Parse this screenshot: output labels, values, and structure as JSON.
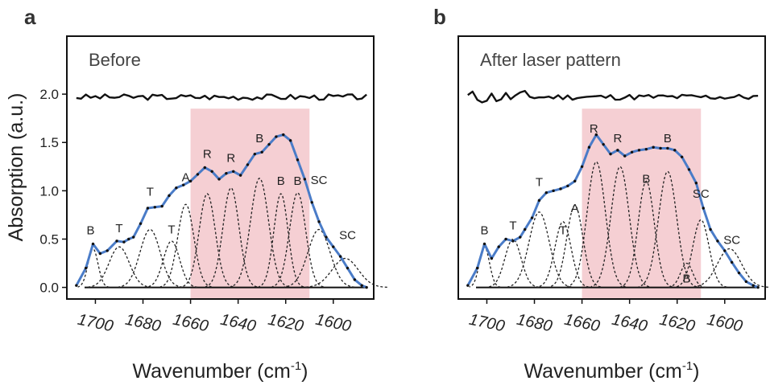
{
  "ylabel": "Absorption (a.u.)",
  "xlabel": "Wavenumber (cm",
  "xlabel_sup": "-1",
  "xlabel_close": ")",
  "panels": [
    {
      "letter": "a",
      "title": "Before"
    },
    {
      "letter": "b",
      "title": "After laser pattern"
    }
  ],
  "colors": {
    "fit_line": "#4a7cc8",
    "shade": "#f5cfd3",
    "residual": "#111111",
    "components": "#222222",
    "data_points": "#111111"
  },
  "chart_data": [
    {
      "type": "line",
      "title": "Before",
      "xlabel": "Wavenumber (cm-1)",
      "ylabel": "Absorption (a.u.)",
      "xlim": [
        1712,
        1583
      ],
      "ylim": [
        -0.12,
        2.6
      ],
      "x_reversed": true,
      "x_ticks": [
        1700,
        1680,
        1660,
        1640,
        1620,
        1600
      ],
      "y_ticks": [
        "0.0",
        "0.5",
        "1.0",
        "1.5",
        "2.0"
      ],
      "shaded_region": [
        1660,
        1610
      ],
      "residual_offset": 1.97,
      "series": [
        {
          "kind": "fitted_spectrum",
          "x": [
            1708,
            1704,
            1701,
            1698,
            1695,
            1691,
            1688,
            1686,
            1684,
            1681,
            1678,
            1675,
            1672,
            1669,
            1666,
            1663,
            1660,
            1657,
            1654,
            1651,
            1648,
            1645,
            1642,
            1639,
            1636,
            1633,
            1630,
            1627,
            1624,
            1621,
            1618,
            1615,
            1612,
            1609,
            1606,
            1603,
            1600,
            1597,
            1594,
            1591,
            1588,
            1586
          ],
          "y": [
            0.02,
            0.2,
            0.45,
            0.35,
            0.38,
            0.48,
            0.47,
            0.5,
            0.52,
            0.66,
            0.82,
            0.83,
            0.84,
            0.95,
            1.03,
            1.06,
            1.1,
            1.17,
            1.24,
            1.2,
            1.12,
            1.18,
            1.2,
            1.16,
            1.27,
            1.38,
            1.4,
            1.48,
            1.56,
            1.58,
            1.52,
            1.32,
            1.12,
            0.88,
            0.68,
            0.52,
            0.42,
            0.32,
            0.2,
            0.08,
            0.02,
            0.0
          ]
        }
      ],
      "components": [
        {
          "center": 1701,
          "height": 0.4,
          "fwhm": 5
        },
        {
          "center": 1690,
          "height": 0.42,
          "fwhm": 10
        },
        {
          "center": 1677,
          "height": 0.6,
          "fwhm": 10
        },
        {
          "center": 1668,
          "height": 0.48,
          "fwhm": 8
        },
        {
          "center": 1662,
          "height": 0.86,
          "fwhm": 8
        },
        {
          "center": 1653,
          "height": 0.97,
          "fwhm": 8
        },
        {
          "center": 1643,
          "height": 1.03,
          "fwhm": 8
        },
        {
          "center": 1631,
          "height": 1.13,
          "fwhm": 9
        },
        {
          "center": 1622,
          "height": 0.97,
          "fwhm": 7
        },
        {
          "center": 1615,
          "height": 0.98,
          "fwhm": 8
        },
        {
          "center": 1606,
          "height": 0.6,
          "fwhm": 11
        },
        {
          "center": 1595,
          "height": 0.3,
          "fwhm": 13
        }
      ],
      "peak_labels": [
        {
          "text": "B",
          "x": 1702,
          "y": 0.55
        },
        {
          "text": "T",
          "x": 1690,
          "y": 0.57
        },
        {
          "text": "T",
          "x": 1677,
          "y": 0.95
        },
        {
          "text": "T",
          "x": 1668,
          "y": 0.56
        },
        {
          "text": "A",
          "x": 1662,
          "y": 1.1
        },
        {
          "text": "R",
          "x": 1653,
          "y": 1.34
        },
        {
          "text": "R",
          "x": 1643,
          "y": 1.3
        },
        {
          "text": "B",
          "x": 1631,
          "y": 1.5
        },
        {
          "text": "B",
          "x": 1622,
          "y": 1.06
        },
        {
          "text": "B",
          "x": 1615,
          "y": 1.06
        },
        {
          "text": "SC",
          "x": 1606,
          "y": 1.07
        },
        {
          "text": "SC",
          "x": 1594,
          "y": 0.5
        }
      ]
    },
    {
      "type": "line",
      "title": "After laser pattern",
      "xlabel": "Wavenumber (cm-1)",
      "ylabel": "",
      "xlim": [
        1712,
        1583
      ],
      "ylim": [
        -0.12,
        2.6
      ],
      "x_reversed": true,
      "x_ticks": [
        1700,
        1680,
        1660,
        1640,
        1620,
        1600
      ],
      "y_ticks": [],
      "shaded_region": [
        1660,
        1610
      ],
      "residual_offset": 1.97,
      "series": [
        {
          "kind": "fitted_spectrum",
          "x": [
            1708,
            1704,
            1701,
            1698,
            1695,
            1692,
            1689,
            1686,
            1684,
            1681,
            1678,
            1675,
            1672,
            1669,
            1666,
            1663,
            1660,
            1657,
            1654,
            1651,
            1648,
            1645,
            1642,
            1639,
            1636,
            1633,
            1630,
            1627,
            1624,
            1621,
            1618,
            1615,
            1612,
            1609,
            1606,
            1603,
            1600,
            1597,
            1594,
            1591,
            1588,
            1586
          ],
          "y": [
            0.02,
            0.2,
            0.45,
            0.3,
            0.42,
            0.5,
            0.48,
            0.52,
            0.6,
            0.72,
            0.9,
            0.98,
            1.0,
            1.02,
            1.05,
            1.1,
            1.25,
            1.45,
            1.58,
            1.48,
            1.38,
            1.42,
            1.36,
            1.4,
            1.42,
            1.43,
            1.45,
            1.44,
            1.44,
            1.42,
            1.35,
            1.22,
            1.08,
            0.82,
            0.6,
            0.48,
            0.38,
            0.26,
            0.15,
            0.06,
            0.02,
            0.0
          ]
        }
      ],
      "components": [
        {
          "center": 1701,
          "height": 0.42,
          "fwhm": 5
        },
        {
          "center": 1689,
          "height": 0.5,
          "fwhm": 8
        },
        {
          "center": 1678,
          "height": 0.78,
          "fwhm": 10
        },
        {
          "center": 1668,
          "height": 0.68,
          "fwhm": 8
        },
        {
          "center": 1663,
          "height": 0.85,
          "fwhm": 8
        },
        {
          "center": 1654,
          "height": 1.3,
          "fwhm": 9
        },
        {
          "center": 1644,
          "height": 1.25,
          "fwhm": 9
        },
        {
          "center": 1633,
          "height": 1.1,
          "fwhm": 8
        },
        {
          "center": 1624,
          "height": 1.2,
          "fwhm": 9
        },
        {
          "center": 1616,
          "height": 0.25,
          "fwhm": 6
        },
        {
          "center": 1610,
          "height": 0.7,
          "fwhm": 8
        },
        {
          "center": 1598,
          "height": 0.4,
          "fwhm": 12
        }
      ],
      "peak_labels": [
        {
          "text": "B",
          "x": 1701,
          "y": 0.55
        },
        {
          "text": "T",
          "x": 1689,
          "y": 0.6
        },
        {
          "text": "T",
          "x": 1678,
          "y": 1.05
        },
        {
          "text": "T",
          "x": 1668,
          "y": 0.55
        },
        {
          "text": "A",
          "x": 1663,
          "y": 0.78
        },
        {
          "text": "R",
          "x": 1655,
          "y": 1.6
        },
        {
          "text": "R",
          "x": 1645,
          "y": 1.5
        },
        {
          "text": "B",
          "x": 1633,
          "y": 1.08
        },
        {
          "text": "B",
          "x": 1624,
          "y": 1.5
        },
        {
          "text": "B",
          "x": 1616,
          "y": 0.05
        },
        {
          "text": "SC",
          "x": 1610,
          "y": 0.93
        },
        {
          "text": "SC",
          "x": 1597,
          "y": 0.45
        }
      ]
    }
  ]
}
